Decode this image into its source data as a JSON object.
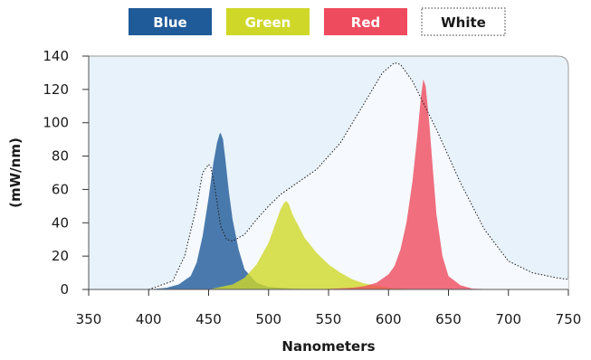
{
  "chart_data": {
    "type": "area",
    "xlabel": "Nanometers",
    "ylabel": "(mW/nm)",
    "xlim": [
      350,
      750
    ],
    "ylim": [
      0,
      140
    ],
    "xticks": [
      350,
      400,
      450,
      500,
      550,
      600,
      650,
      700,
      750
    ],
    "yticks": [
      0,
      20,
      40,
      60,
      80,
      100,
      120,
      140
    ],
    "legend_placement": "top",
    "plot_background": "#e8f2fa",
    "series": [
      {
        "name": "Blue",
        "color": "#1f5a99",
        "style": "filled",
        "x": [
          400,
          415,
          425,
          435,
          440,
          445,
          450,
          454,
          457,
          459,
          460,
          462,
          464,
          467,
          470,
          475,
          480,
          490,
          500,
          520,
          540
        ],
        "y": [
          0,
          1,
          3,
          8,
          16,
          32,
          55,
          76,
          88,
          93,
          94,
          90,
          78,
          58,
          42,
          24,
          12,
          4,
          1.5,
          0.5,
          0
        ]
      },
      {
        "name": "Green",
        "color": "#cfd828",
        "style": "filled",
        "x": [
          450,
          470,
          480,
          490,
          500,
          505,
          510,
          513,
          515,
          517,
          520,
          525,
          530,
          540,
          550,
          560,
          570,
          580,
          600,
          620
        ],
        "y": [
          0,
          3,
          7,
          15,
          28,
          38,
          48,
          52,
          53,
          51,
          45,
          38,
          31,
          22,
          15,
          10,
          6,
          3.5,
          1,
          0
        ]
      },
      {
        "name": "Red",
        "color": "#ef4b5e",
        "style": "filled",
        "x": [
          540,
          570,
          580,
          590,
          600,
          605,
          610,
          615,
          620,
          624,
          627,
          629,
          631,
          634,
          637,
          640,
          645,
          650,
          660,
          670,
          690
        ],
        "y": [
          0,
          1,
          2,
          4,
          9,
          14,
          24,
          40,
          65,
          92,
          115,
          126,
          122,
          100,
          72,
          45,
          20,
          8,
          2.5,
          0.5,
          0
        ]
      },
      {
        "name": "White",
        "color": "#1a1a1a",
        "style": "dotted",
        "x": [
          400,
          420,
          430,
          440,
          445,
          450,
          452,
          455,
          460,
          465,
          470,
          480,
          490,
          500,
          510,
          520,
          540,
          560,
          580,
          595,
          605,
          610,
          620,
          640,
          660,
          680,
          700,
          720,
          740,
          750
        ],
        "y": [
          0,
          5,
          20,
          50,
          70,
          75,
          73,
          62,
          38,
          30,
          29,
          33,
          42,
          50,
          57,
          62,
          72,
          88,
          112,
          130,
          136,
          135,
          125,
          96,
          64,
          36,
          17,
          10,
          7,
          6
        ]
      }
    ]
  }
}
